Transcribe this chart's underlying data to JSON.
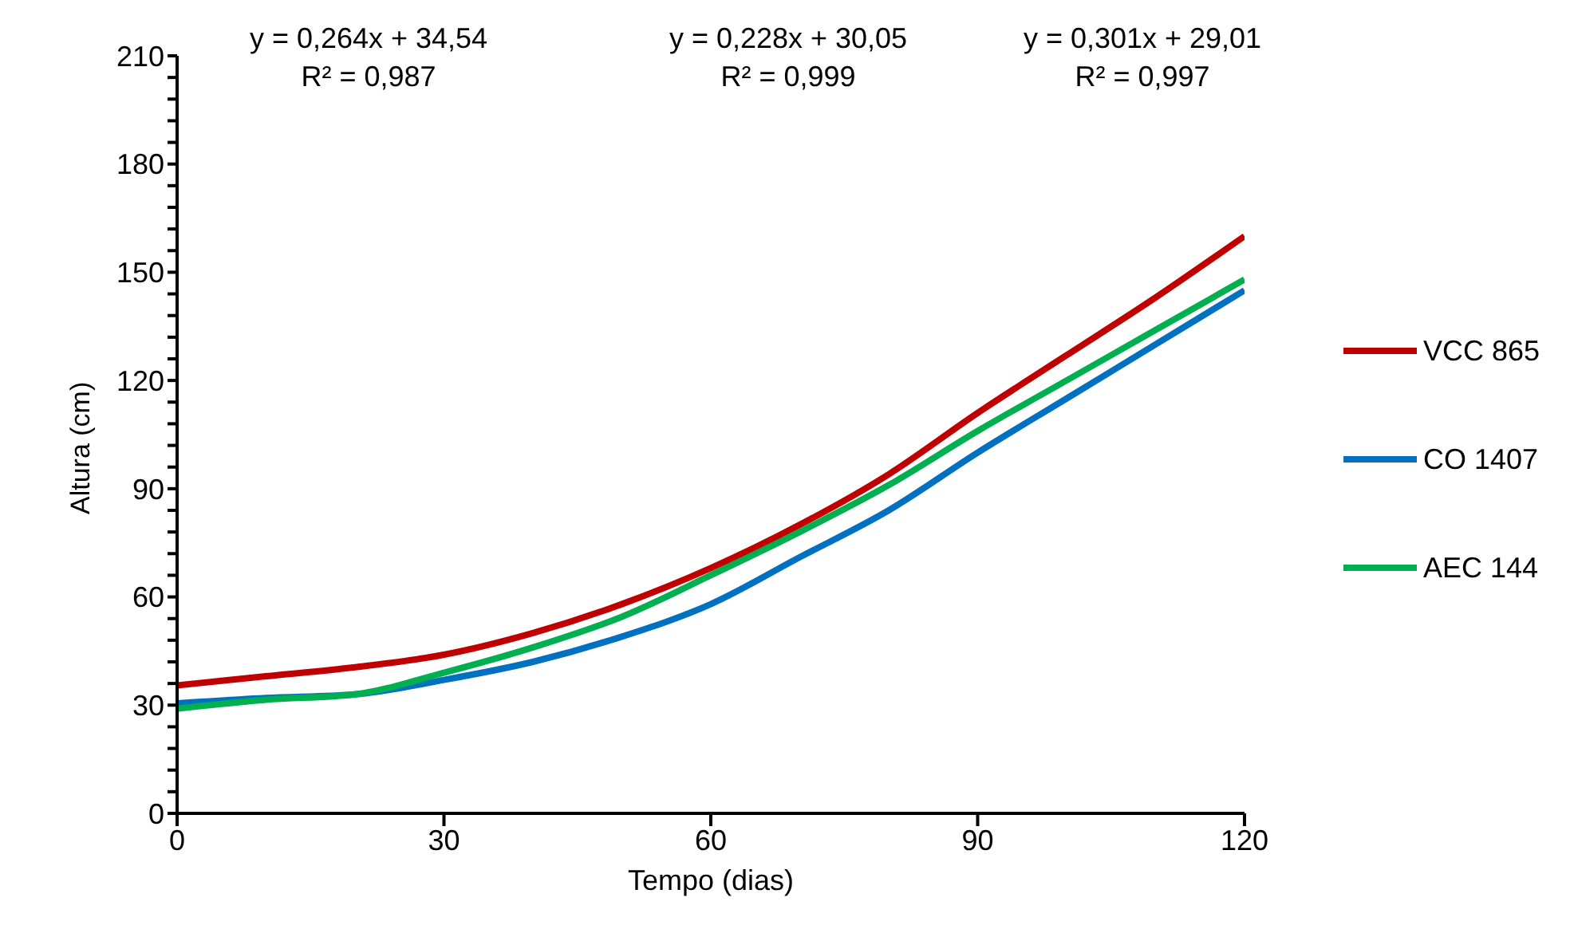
{
  "chart_data": {
    "type": "line",
    "xlabel": "Tempo (dias)",
    "ylabel": "Altura (cm)",
    "x": [
      0,
      10,
      20,
      30,
      40,
      50,
      60,
      70,
      80,
      90,
      100,
      110,
      120
    ],
    "series": [
      {
        "name": "VCC 865",
        "color": "#c00000",
        "values": [
          35.5,
          38,
          40.5,
          44,
          50,
          58,
          68,
          80,
          94,
          111,
          127,
          143,
          160
        ]
      },
      {
        "name": "CO 1407",
        "color": "#0070c0",
        "values": [
          30.5,
          32,
          33,
          37,
          42,
          49,
          58,
          71,
          84,
          100,
          115,
          130,
          145
        ]
      },
      {
        "name": "AEC 144",
        "color": "#00b050",
        "values": [
          29,
          31.5,
          33,
          39,
          46,
          54.5,
          66,
          78,
          91,
          106,
          120,
          134,
          148
        ]
      }
    ],
    "xlim": [
      0,
      120
    ],
    "xticks": [
      0,
      30,
      60,
      90,
      120
    ],
    "ylim": [
      0,
      210
    ],
    "yticks": [
      0,
      {
        "value": 6,
        "label": null
      },
      {
        "value": 12,
        "label": null
      },
      {
        "value": 18,
        "label": null
      },
      {
        "value": 24,
        "label": null
      },
      30,
      {
        "value": 36,
        "label": null
      },
      {
        "value": 42,
        "label": null
      },
      {
        "value": 48,
        "label": null
      },
      {
        "value": 54,
        "label": null
      },
      60,
      {
        "value": 66,
        "label": null
      },
      {
        "value": 72,
        "label": null
      },
      {
        "value": 78,
        "label": null
      },
      {
        "value": 84,
        "label": null
      },
      90,
      {
        "value": 96,
        "label": null
      },
      {
        "value": 102,
        "label": null
      },
      {
        "value": 108,
        "label": null
      },
      {
        "value": 114,
        "label": null
      },
      120,
      {
        "value": 126,
        "label": null
      },
      {
        "value": 132,
        "label": null
      },
      {
        "value": 138,
        "label": null
      },
      {
        "value": 144,
        "label": null
      },
      150,
      {
        "value": 156,
        "label": null
      },
      {
        "value": 162,
        "label": null
      },
      {
        "value": 168,
        "label": null
      },
      {
        "value": 174,
        "label": null
      },
      180,
      {
        "value": 186,
        "label": null
      },
      {
        "value": 192,
        "label": null
      },
      {
        "value": 198,
        "label": null
      },
      {
        "value": 204,
        "label": null
      },
      210
    ],
    "annotations": [
      "y = 0,264x + 34,54\nR² = 0,987",
      "y = 0,228x + 30,05\nR² = 0,999",
      "y = 0,301x + 29,01\nR² = 0,997"
    ],
    "grid": false,
    "legend": "right",
    "marker": "none",
    "line_style": "solid"
  }
}
